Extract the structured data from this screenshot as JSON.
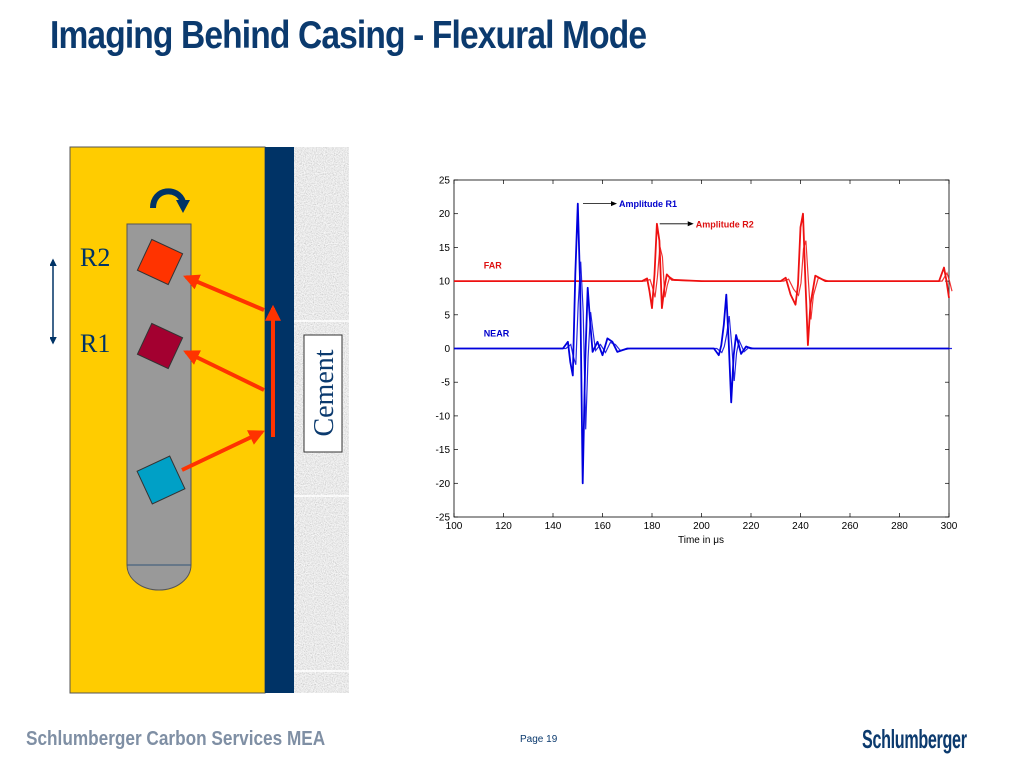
{
  "slide": {
    "title": "Imaging Behind Casing - Flexural Mode",
    "footer_org": "Schlumberger Carbon Services MEA",
    "page_label": "Page 19",
    "logo_text": "Schlumberger"
  },
  "diagram": {
    "receiver_labels": [
      "R2",
      "R1"
    ],
    "cement_label": "Cement",
    "colors": {
      "fluid": "#ffcc00",
      "casing": "#003366",
      "tool": "#999999",
      "receiver_r2": "#ff3300",
      "receiver_r1": "#a30030",
      "transmitter": "#00a0c6",
      "ray_arrow": "#ff3300"
    }
  },
  "chart_data": {
    "type": "line",
    "xlabel": "Time in μs",
    "ylabel": "",
    "xlim": [
      100,
      300
    ],
    "ylim": [
      -25,
      25
    ],
    "xticks": [
      100,
      120,
      140,
      160,
      180,
      200,
      220,
      240,
      260,
      280,
      300
    ],
    "yticks": [
      25,
      20,
      15,
      10,
      5,
      0,
      -5,
      -10,
      -15,
      -20,
      -25
    ],
    "grid": false,
    "annotations": [
      {
        "text": "Amplitude R1",
        "x": 150.5,
        "y": 21.5,
        "color": "#0000cc"
      },
      {
        "text": "Amplitude R2",
        "x": 181.5,
        "y": 18.5,
        "color": "#dd1111"
      },
      {
        "text": "FAR",
        "x": 112,
        "y": 12.3,
        "color": "#dd1111"
      },
      {
        "text": "NEAR",
        "x": 112,
        "y": 2.2,
        "color": "#0000cc"
      }
    ],
    "series": [
      {
        "name": "FAR",
        "color": "#ee1111",
        "baseline": 10,
        "x": [
          100,
          176,
          178,
          179,
          180,
          181,
          182,
          183,
          184,
          185,
          186,
          188,
          200,
          232,
          234,
          236,
          238,
          239,
          240,
          241,
          242,
          243,
          244,
          246,
          250,
          296,
          298,
          299,
          300
        ],
        "y": [
          10,
          10,
          10.4,
          8.5,
          6,
          11,
          18.5,
          16,
          6,
          9,
          11,
          10.2,
          10,
          10,
          10.5,
          8,
          6.5,
          9.5,
          18,
          20,
          10,
          0.5,
          6.5,
          10.8,
          10,
          10,
          12,
          10,
          7.5
        ]
      },
      {
        "name": "NEAR",
        "color": "#0000dd",
        "baseline": 0,
        "x": [
          100,
          144,
          146,
          147,
          148,
          149,
          150,
          151,
          152,
          153,
          154,
          155,
          156,
          158,
          160,
          162,
          164,
          166,
          170,
          205,
          206,
          207,
          208,
          209,
          210,
          211,
          212,
          213,
          214,
          216,
          218,
          220,
          300
        ],
        "y": [
          0,
          0,
          1,
          -2,
          -4,
          11,
          21.5,
          9,
          -20,
          -2,
          9,
          4,
          -0.5,
          1,
          -1,
          1.5,
          1,
          -0.5,
          0,
          0,
          -0.5,
          -1,
          0.5,
          3.5,
          8,
          1,
          -8,
          -1,
          2,
          -0.8,
          0.3,
          0,
          0
        ]
      }
    ]
  }
}
